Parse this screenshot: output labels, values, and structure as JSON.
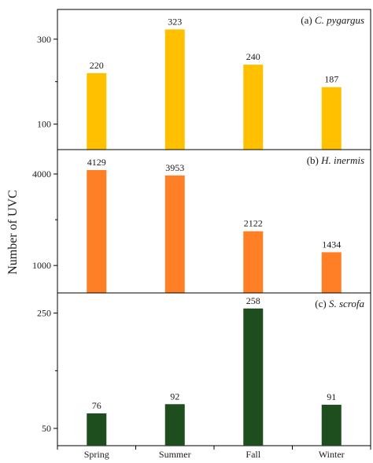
{
  "y_axis_title": "Number of UVC",
  "chart_data": {
    "type": "bar",
    "categories": [
      "Spring",
      "Summer",
      "Fall",
      "Winter"
    ],
    "ylabel": "Number of UVC",
    "panels": [
      {
        "title_prefix": "(a) ",
        "title_species": "C. pygargus",
        "values": [
          220,
          323,
          240,
          187
        ],
        "value_labels": [
          "220",
          "323",
          "240",
          "187"
        ],
        "yticks": [
          100,
          300
        ],
        "ytick_labels": [
          "100",
          "300"
        ],
        "ylim": [
          40,
          370
        ],
        "color": "#FFC000"
      },
      {
        "title_prefix": "(b) ",
        "title_species": "H. inermis",
        "values": [
          4129,
          3953,
          2122,
          1434
        ],
        "value_labels": [
          "4129",
          "3953",
          "2122",
          "1434"
        ],
        "yticks": [
          1000,
          4000
        ],
        "ytick_labels": [
          "1000",
          "4000"
        ],
        "ylim": [
          100,
          4800
        ],
        "color": "#FF7F27"
      },
      {
        "title_prefix": "(c) ",
        "title_species": "S. scrofa",
        "values": [
          76,
          92,
          258,
          91
        ],
        "value_labels": [
          "76",
          "92",
          "258",
          "91"
        ],
        "yticks": [
          50,
          250
        ],
        "ytick_labels": [
          "50",
          "250"
        ],
        "ylim": [
          20,
          285
        ],
        "color": "#1E4D1E"
      }
    ]
  }
}
